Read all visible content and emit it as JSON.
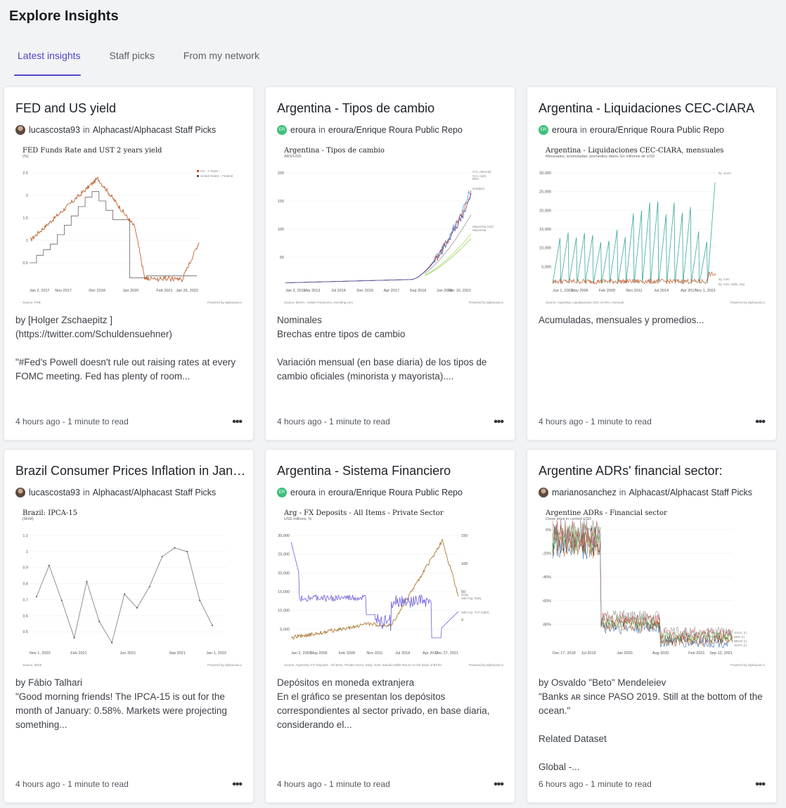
{
  "page": {
    "title": "Explore Insights"
  },
  "tabs": [
    {
      "label": "Latest insights",
      "active": true
    },
    {
      "label": "Staff picks",
      "active": false
    },
    {
      "label": "From my network",
      "active": false
    }
  ],
  "icons": {
    "more": "more-horizontal-icon"
  },
  "cards": [
    {
      "title": "FED and US yield",
      "author": "lucascosta93",
      "in": "in",
      "repo": "Alphacast/Alphacast Staff Picks",
      "avatar": "photo",
      "desc": [
        "by [Holger Zschaepitz ](https://twitter.com/Schuldensuehner)",
        "",
        "\"#Fed's Powell doesn't rule out raising rates at every FOMC meeting. Fed has plenty of room..."
      ],
      "meta": "4 hours ago - 1 minute to read",
      "chart": {
        "title": "FED Funds Rate and UST 2 years yield",
        "subtitle": "(%)",
        "xticks": [
          "Jan 2, 2017",
          "Nov 2017",
          "Dec 2018",
          "Jan 2020",
          "Feb 2021",
          "Jan 26, 2022"
        ],
        "yticks": [
          "2.5",
          "2",
          "1.5",
          "1",
          "0.5"
        ],
        "legend": [
          "US - 2 Years -",
          "United States - Federal Funds Target Range - Upper Limit"
        ],
        "footer": "Source: FRB",
        "powered": "Powered by alphacast.io"
      }
    },
    {
      "title": "Argentina - Tipos de cambio",
      "author": "eroura",
      "in": "in",
      "repo": "eroura/Enrique Roura Public Repo",
      "avatar": "ER",
      "desc": [
        "Nominales",
        "Brechas entre tipos de cambio",
        "",
        "Variación mensual (en base diaria) de los tipos de cambio oficiales (minorista y mayorista)...."
      ],
      "meta": "4 hours ago - 1 minute to read",
      "chart": {
        "title": "Argentina - Tipos de cambio",
        "subtitle": "ARS/USD",
        "xticks": [
          "Jan 3, 2011",
          "Mar 2013",
          "Jul 2014",
          "Dec 2015",
          "Apr 2017",
          "Sep 2018",
          "Jun 2020",
          "Dec 10, 2021"
        ],
        "yticks": [
          "200",
          "150",
          "100",
          "50"
        ],
        "legend": [
          "CCL (Merval)",
          "CCL (adr)",
          "Blue",
          "Solidario",
          "Mayorista (var)",
          "Mayorista"
        ],
        "footer": "Source: BCRA, Ámbito Financiero, investing.com",
        "powered": "Powered by alphacast.io"
      }
    },
    {
      "title": "Argentina - Liquidaciones CEC-CIARA",
      "author": "eroura",
      "in": "in",
      "repo": "eroura/Enrique Roura Public Repo",
      "avatar": "ER",
      "desc": [
        "Acumuladas, mensuales y promedios..."
      ],
      "meta": "4 hours ago - 1 minute to read",
      "chart": {
        "title": "Argentina - Liquidaciones CEC-CIARA, mensuales",
        "subtitle": "Mensuales, acumuladas, promedios diario. En millones de USD",
        "xticks": [
          "Jun 1, 2002",
          "May 2006",
          "Feb 2009",
          "Nov 2011",
          "Jul 2014",
          "Apr 2017",
          "Nov 1, 2021"
        ],
        "yticks": [
          "30,000",
          "25,000",
          "20,000",
          "15,000",
          "10,000",
          "5,000"
        ],
        "legend": [
          "liq. acum",
          "liq. mes",
          "liq. mes. daily. avg."
        ],
        "footer": "Source: Argentina, Liquidaciones CEC-CIARA, mensual",
        "powered": "Powered by alphacast.io"
      }
    },
    {
      "title": "Brazil Consumer Prices Inflation in January",
      "author": "lucascosta93",
      "in": "in",
      "repo": "Alphacast/Alphacast Staff Picks",
      "avatar": "photo",
      "desc": [
        "by Fábio Talhari",
        "\"Good morning friends! The IPCA-15 is out for the month of January: 0.58%. Markets were projecting something..."
      ],
      "meta": "4 hours ago - 1 minute to read",
      "chart": {
        "title": "Brazil: IPCA-15",
        "subtitle": "(MoM)",
        "xticks": [
          "Nov 1, 2020",
          "Feb 2021",
          "Jun 2021",
          "Sep 2021",
          "Jan 1, 2022"
        ],
        "yticks": [
          "1.1",
          "1",
          "0.9",
          "0.8",
          "0.7",
          "0.6",
          "0.5"
        ],
        "legend": [],
        "footer": "Source: IBGE",
        "powered": "Powered by alphacast.io"
      }
    },
    {
      "title": "Argentina - Sistema Financiero",
      "author": "eroura",
      "in": "in",
      "repo": "eroura/Enrique Roura Public Repo",
      "avatar": "ER",
      "desc": [
        "Depósitos en moneda extranjera",
        "En el gráfico se presentan los depósitos correspondientes al sector privado, en base diaria, considerando el..."
      ],
      "meta": "4 hours ago - 1 minute to read",
      "chart": {
        "title": "Arg - FX Deposits - All Items - Private Sector",
        "subtitle": "USD millions; %",
        "xticks": [
          "Jan 2, 2003",
          "May 2006",
          "Feb 2009",
          "Nov 2011",
          "Jul 2014",
          "Apr 2017",
          "Dec 27, 2021"
        ],
        "yticks": [
          "30,000",
          "25,000",
          "20,000",
          "15,000",
          "10,000",
          "5,000"
        ],
        "yticks_right": [
          "150",
          "100",
          "50",
          "0"
        ],
        "legend": [
          "Daily",
          "3dd Avg. Daily",
          "3dd Avg. YoY (right)"
        ],
        "footer": "Source: Argentina, FX Deposits - All items, Private sector, Daily. Note: Estudio Miller-Roura on the basis of BCRA",
        "powered": "Powered by alphacast.io"
      }
    },
    {
      "title": "Argentine ADRs' financial sector:",
      "author": "marianosanchez",
      "in": "in",
      "repo": "Alphacast/Alphacast Staff Picks",
      "avatar": "photo",
      "desc": [
        "by Osvaldo \"Beto\" Mendeleiev",
        "\"Banks ᴀʀ since PASO 2019. Still at the bottom of the ocean.\"",
        "",
        "Related Dataset",
        "",
        "Global -..."
      ],
      "meta": "6 hours ago - 1 minute to read",
      "chart": {
        "title": "Argentine ADRs - Financial sector",
        "subtitle": "Close price in current USD",
        "xticks": [
          "Dec 17, 2018",
          "Jul 2019",
          "Jan 2020",
          "Aug 2020",
          "Feb 2021",
          "Sep 12, 2021"
        ],
        "yticks": [
          "0%",
          "-20%",
          "-40%",
          "-60%",
          "-80%"
        ],
        "legend": [
          "GGAL (r)",
          "BMA (r)",
          "BBAR (r)",
          "SUPV (r)"
        ],
        "footer": "",
        "powered": "Powered by alphacast.io"
      }
    }
  ],
  "card5_meta_override": "6 hours ago - 1 minute to read"
}
